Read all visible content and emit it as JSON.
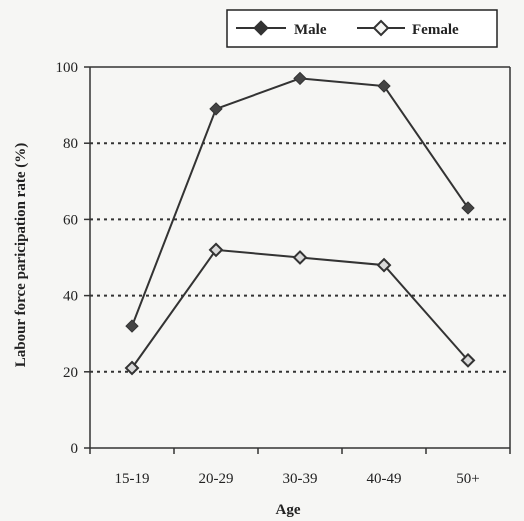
{
  "chart_data": {
    "type": "line",
    "xlabel": "Age",
    "ylabel": "Labour force paricipation rate (%)",
    "categories": [
      "15-19",
      "20-29",
      "30-39",
      "40-49",
      "50+"
    ],
    "ylim": [
      0,
      100
    ],
    "yticks": [
      0,
      20,
      40,
      60,
      80,
      100
    ],
    "grid": "horizontal dotted",
    "legend_position": "top-right",
    "series": [
      {
        "name": "Male",
        "marker": "filled-diamond",
        "values": [
          32,
          89,
          97,
          95,
          63
        ]
      },
      {
        "name": "Female",
        "marker": "open-diamond",
        "values": [
          21,
          52,
          50,
          48,
          23
        ]
      }
    ]
  }
}
